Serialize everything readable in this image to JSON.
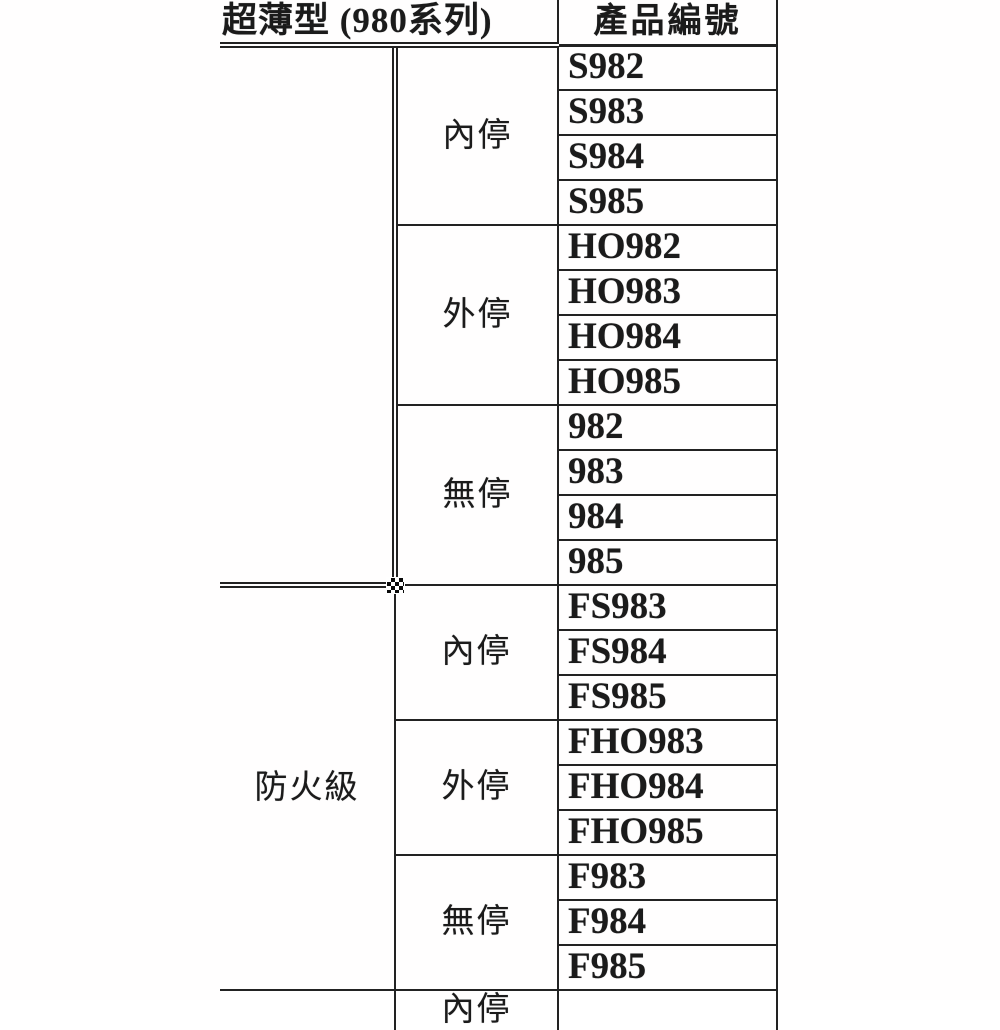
{
  "table": {
    "header": {
      "series_label": "超薄型 (980系列)",
      "product_code_label": "產品編號"
    },
    "sections": [
      {
        "category": "",
        "groups": [
          {
            "stop_type": "內停",
            "codes": [
              "S982",
              "S983",
              "S984",
              "S985"
            ]
          },
          {
            "stop_type": "外停",
            "codes": [
              "HO982",
              "HO983",
              "HO984",
              "HO985"
            ]
          },
          {
            "stop_type": "無停",
            "codes": [
              "982",
              "983",
              "984",
              "985"
            ]
          }
        ]
      },
      {
        "category": "防火級",
        "groups": [
          {
            "stop_type": "內停",
            "codes": [
              "FS983",
              "FS984",
              "FS985"
            ]
          },
          {
            "stop_type": "外停",
            "codes": [
              "FHO983",
              "FHO984",
              "FHO985"
            ]
          },
          {
            "stop_type": "無停",
            "codes": [
              "F983",
              "F984",
              "F985"
            ]
          }
        ]
      }
    ],
    "partial_next_row": {
      "clipped_stop_type": "內停"
    }
  },
  "artifacts": {
    "handle_name": "table-selection-handle",
    "border_color": "#222222",
    "background_color": "#ffffff"
  }
}
